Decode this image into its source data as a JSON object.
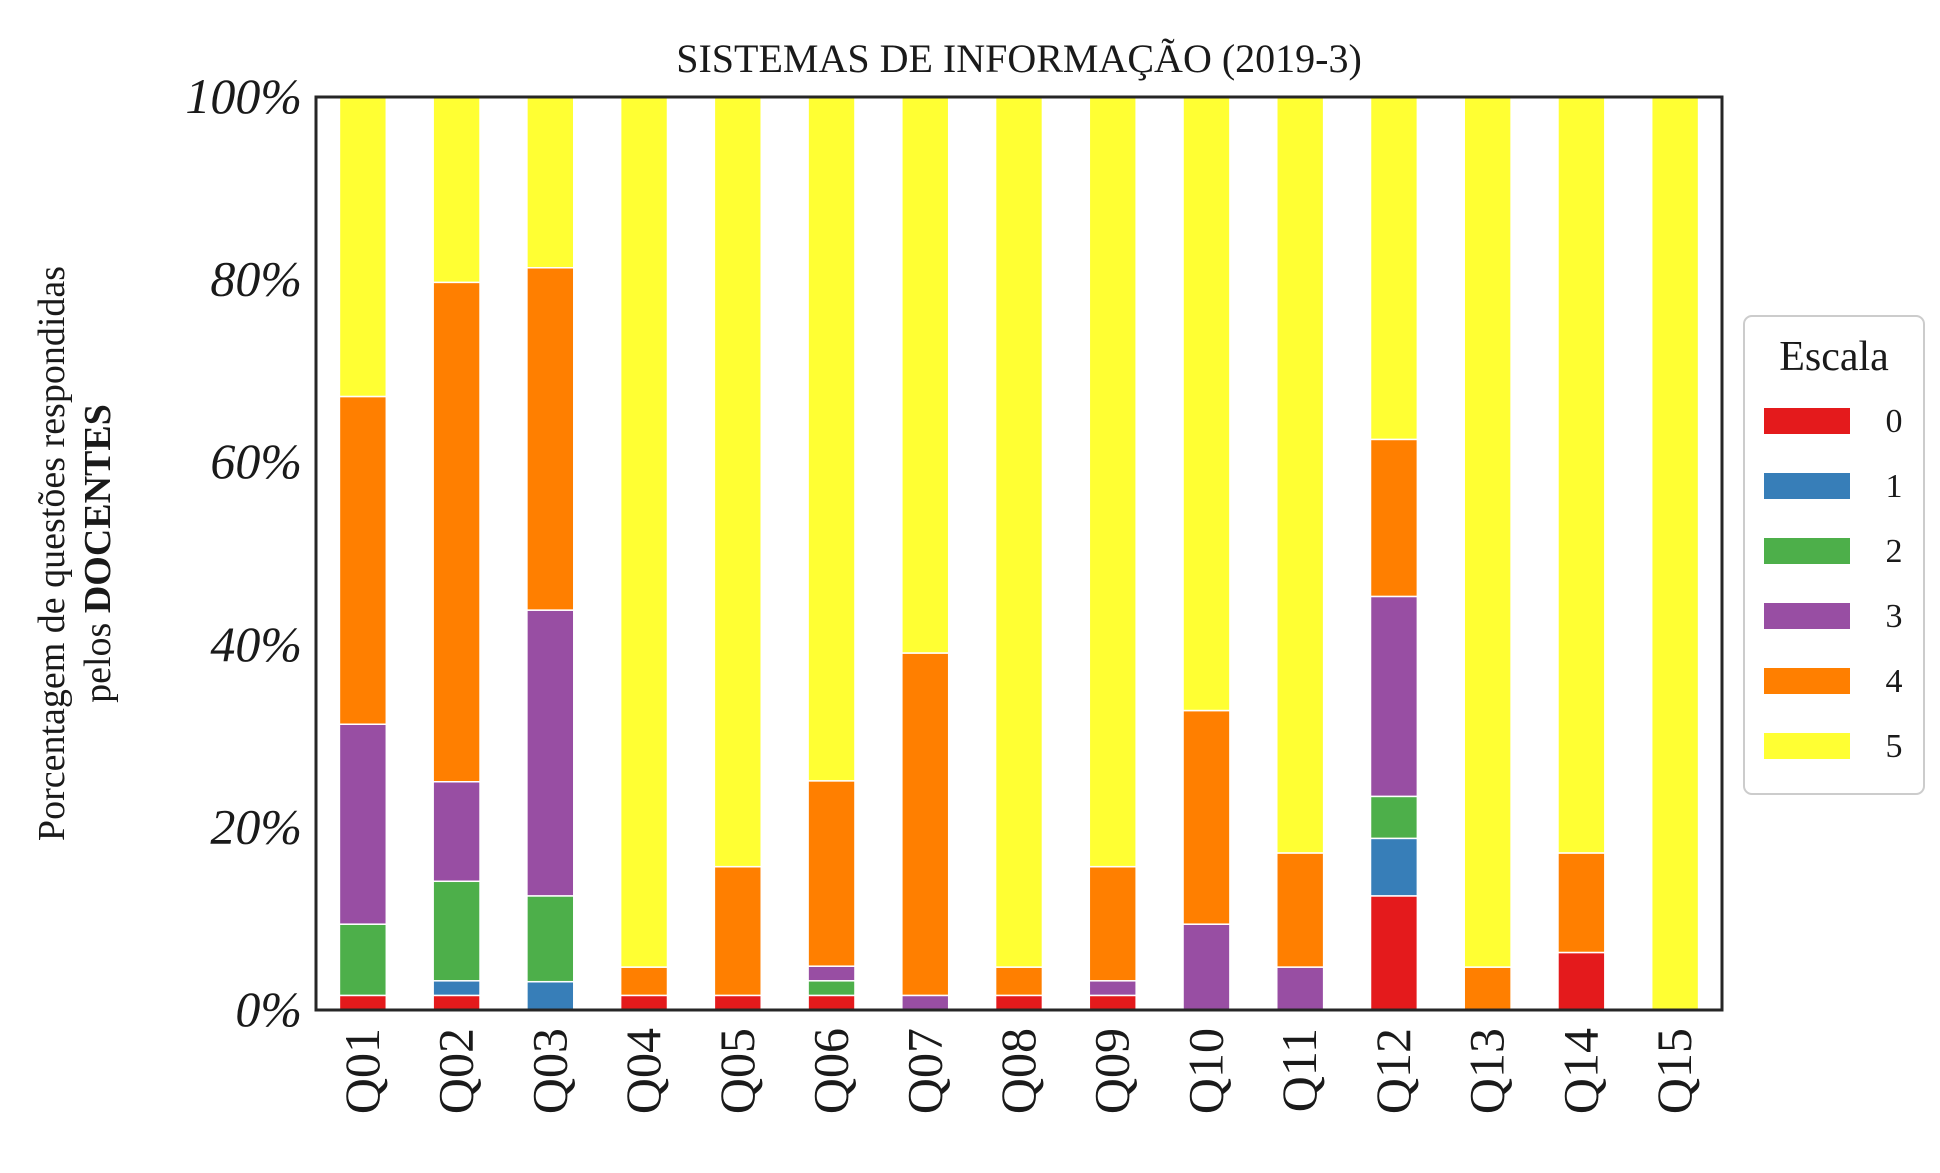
{
  "chart_data": {
    "type": "bar",
    "stacked": true,
    "title": "SISTEMAS DE INFORMAÇÃO (2019-3)",
    "ylabel_line1": "Porcentagem de questões respondidas",
    "ylabel_line2_prefix": "pelos ",
    "ylabel_line2_bold": "DOCENTES",
    "xlabel": "",
    "ylim": [
      0,
      100
    ],
    "yticks": [
      {
        "value": 0,
        "label": "0%"
      },
      {
        "value": 20,
        "label": "20%"
      },
      {
        "value": 40,
        "label": "40%"
      },
      {
        "value": 60,
        "label": "60%"
      },
      {
        "value": 80,
        "label": "80%"
      },
      {
        "value": 100,
        "label": "100%"
      }
    ],
    "categories": [
      "Q01",
      "Q02",
      "Q03",
      "Q04",
      "Q05",
      "Q06",
      "Q07",
      "Q08",
      "Q09",
      "Q10",
      "Q11",
      "Q12",
      "Q13",
      "Q14",
      "Q15"
    ],
    "legend": {
      "title": "Escala",
      "placement": "center-right outside"
    },
    "grid": false,
    "series": [
      {
        "name": "0",
        "color": "#e41a1c",
        "values": [
          1.6,
          1.6,
          0,
          1.6,
          1.6,
          1.6,
          0,
          1.6,
          1.6,
          0,
          0,
          12.5,
          0,
          6.3,
          0
        ]
      },
      {
        "name": "1",
        "color": "#377eb8",
        "values": [
          0,
          1.6,
          3.1,
          0,
          0,
          0,
          0,
          0,
          0,
          0,
          0,
          6.3,
          0,
          0,
          0
        ]
      },
      {
        "name": "2",
        "color": "#4daf4a",
        "values": [
          7.8,
          10.9,
          9.4,
          0,
          0,
          1.6,
          0,
          0,
          0,
          0,
          0,
          4.6,
          0,
          0,
          0
        ]
      },
      {
        "name": "3",
        "color": "#984ea3",
        "values": [
          21.9,
          10.9,
          31.3,
          0,
          0,
          1.6,
          1.6,
          0,
          1.6,
          9.4,
          4.7,
          21.9,
          0,
          0,
          0
        ]
      },
      {
        "name": "4",
        "color": "#ff7f00",
        "values": [
          35.9,
          54.7,
          37.5,
          3.1,
          14.1,
          20.3,
          37.5,
          3.1,
          12.5,
          23.4,
          12.5,
          17.2,
          4.7,
          10.9,
          0
        ]
      },
      {
        "name": "5",
        "color": "#ffff33",
        "values": [
          32.8,
          20.3,
          18.7,
          95.3,
          84.3,
          74.9,
          60.9,
          95.3,
          84.3,
          67.2,
          82.8,
          37.5,
          95.3,
          82.8,
          100
        ]
      }
    ]
  }
}
